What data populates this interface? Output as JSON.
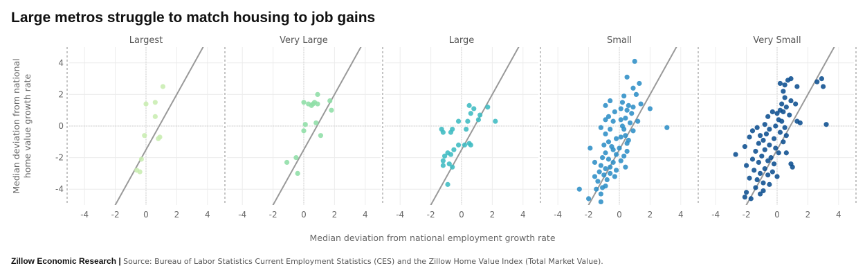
{
  "title": "Large metros struggle to match housing to job gains",
  "footer": {
    "org": "Zillow Economic Research |",
    "source": "Source: Bureau of Labor Statistics Current Employment Statistics (CES) and the Zillow Home Value Index (Total Market Value)."
  },
  "chart_data": {
    "type": "scatter",
    "xlabel": "Median deviation from national employment growth rate",
    "ylabel": [
      "Median deviation from national",
      "home value growth rate"
    ],
    "xlim": [
      -5,
      5
    ],
    "ylim": [
      -5,
      5
    ],
    "xticks": [
      -4,
      -2,
      0,
      2,
      4
    ],
    "yticks": [
      -4,
      -2,
      0,
      2,
      4
    ],
    "grid": true,
    "reference_line": {
      "slope": 1.75,
      "intercept": -1.5,
      "color": "#999999"
    },
    "facets": [
      {
        "name": "Largest",
        "color": "#c8edb0",
        "points": [
          [
            1.1,
            2.5
          ],
          [
            0.6,
            1.5
          ],
          [
            0.0,
            1.4
          ],
          [
            0.6,
            0.6
          ],
          [
            -0.1,
            -0.6
          ],
          [
            0.9,
            -0.7
          ],
          [
            0.8,
            -0.8
          ],
          [
            -0.3,
            -2.1
          ],
          [
            -0.6,
            -2.8
          ],
          [
            -0.4,
            -2.9
          ]
        ]
      },
      {
        "name": "Very Large",
        "color": "#8edea6",
        "points": [
          [
            0.9,
            2.0
          ],
          [
            0.7,
            1.5
          ],
          [
            0.6,
            1.4
          ],
          [
            0.9,
            1.4
          ],
          [
            0.0,
            1.5
          ],
          [
            0.3,
            1.4
          ],
          [
            0.5,
            1.3
          ],
          [
            1.7,
            1.6
          ],
          [
            1.8,
            1.0
          ],
          [
            0.8,
            0.2
          ],
          [
            0.1,
            0.1
          ],
          [
            0.0,
            -0.3
          ],
          [
            1.1,
            -0.6
          ],
          [
            -0.5,
            -2.0
          ],
          [
            -1.1,
            -2.3
          ],
          [
            -0.4,
            -3.0
          ]
        ]
      },
      {
        "name": "Large",
        "color": "#3dbbc1",
        "points": [
          [
            0.5,
            1.3
          ],
          [
            1.7,
            1.2
          ],
          [
            0.8,
            1.1
          ],
          [
            0.6,
            0.8
          ],
          [
            1.2,
            0.7
          ],
          [
            1.1,
            0.4
          ],
          [
            -0.2,
            0.3
          ],
          [
            0.4,
            0.3
          ],
          [
            2.2,
            0.3
          ],
          [
            0.3,
            -0.2
          ],
          [
            -1.3,
            -0.2
          ],
          [
            -0.6,
            -0.2
          ],
          [
            -1.2,
            -0.4
          ],
          [
            -0.7,
            -0.4
          ],
          [
            0.5,
            -1.1
          ],
          [
            0.6,
            -1.2
          ],
          [
            0.2,
            -1.2
          ],
          [
            -0.2,
            -1.2
          ],
          [
            -0.5,
            -1.5
          ],
          [
            -0.9,
            -1.7
          ],
          [
            -0.7,
            -1.8
          ],
          [
            -1.1,
            -1.9
          ],
          [
            -1.2,
            -2.2
          ],
          [
            -0.8,
            -2.4
          ],
          [
            -0.6,
            -2.6
          ],
          [
            -1.2,
            -2.5
          ],
          [
            -0.9,
            -3.7
          ]
        ]
      },
      {
        "name": "Small",
        "color": "#2d8ec6",
        "points": [
          [
            1.0,
            4.1
          ],
          [
            0.5,
            3.1
          ],
          [
            1.3,
            2.7
          ],
          [
            0.9,
            2.4
          ],
          [
            1.1,
            2.0
          ],
          [
            0.3,
            1.9
          ],
          [
            -0.6,
            1.6
          ],
          [
            0.2,
            1.5
          ],
          [
            0.6,
            1.3
          ],
          [
            0.9,
            1.2
          ],
          [
            1.4,
            1.4
          ],
          [
            2.0,
            1.1
          ],
          [
            -0.9,
            1.3
          ],
          [
            0.1,
            1.1
          ],
          [
            0.5,
            1.0
          ],
          [
            -0.3,
            0.9
          ],
          [
            0.8,
            0.8
          ],
          [
            -0.7,
            0.6
          ],
          [
            0.4,
            0.5
          ],
          [
            0.1,
            0.4
          ],
          [
            -0.9,
            0.4
          ],
          [
            -0.4,
            0.3
          ],
          [
            1.2,
            0.3
          ],
          [
            0.7,
            0.2
          ],
          [
            0.2,
            0.0
          ],
          [
            -1.2,
            -0.1
          ],
          [
            -0.6,
            -0.2
          ],
          [
            0.3,
            -0.2
          ],
          [
            0.9,
            -0.3
          ],
          [
            3.1,
            -0.1
          ],
          [
            -0.9,
            -0.5
          ],
          [
            0.4,
            -0.6
          ],
          [
            0.1,
            -0.7
          ],
          [
            -0.2,
            -0.8
          ],
          [
            0.6,
            -0.9
          ],
          [
            -0.7,
            -1.0
          ],
          [
            0.5,
            -1.1
          ],
          [
            -1.0,
            -1.2
          ],
          [
            -0.5,
            -1.3
          ],
          [
            0.0,
            -1.4
          ],
          [
            -1.9,
            -1.4
          ],
          [
            -0.4,
            -1.5
          ],
          [
            0.5,
            -1.6
          ],
          [
            -0.9,
            -1.7
          ],
          [
            -0.2,
            -1.8
          ],
          [
            0.3,
            -1.9
          ],
          [
            -1.1,
            -2.0
          ],
          [
            -0.7,
            -2.1
          ],
          [
            0.1,
            -2.2
          ],
          [
            -0.4,
            -2.3
          ],
          [
            -1.6,
            -2.3
          ],
          [
            -1.2,
            -2.5
          ],
          [
            -0.6,
            -2.6
          ],
          [
            0.4,
            -2.6
          ],
          [
            -0.9,
            -2.7
          ],
          [
            -0.2,
            -2.8
          ],
          [
            -1.3,
            -2.9
          ],
          [
            -0.6,
            -3.0
          ],
          [
            -1.0,
            -3.1
          ],
          [
            -0.3,
            -3.2
          ],
          [
            -1.6,
            -3.2
          ],
          [
            -0.8,
            -3.4
          ],
          [
            -1.4,
            -3.5
          ],
          [
            -0.9,
            -3.8
          ],
          [
            -1.1,
            -3.9
          ],
          [
            -2.6,
            -4.0
          ],
          [
            -1.5,
            -4.0
          ],
          [
            -1.2,
            -4.3
          ],
          [
            -2.0,
            -4.6
          ],
          [
            -1.2,
            -4.8
          ]
        ]
      },
      {
        "name": "Very Small",
        "color": "#0d4f8f",
        "points": [
          [
            0.7,
            2.9
          ],
          [
            0.9,
            3.0
          ],
          [
            0.2,
            2.7
          ],
          [
            0.5,
            2.6
          ],
          [
            1.3,
            2.5
          ],
          [
            2.9,
            3.0
          ],
          [
            2.6,
            2.8
          ],
          [
            3.0,
            2.5
          ],
          [
            0.4,
            2.2
          ],
          [
            0.5,
            1.8
          ],
          [
            0.9,
            1.6
          ],
          [
            1.2,
            1.4
          ],
          [
            0.3,
            1.4
          ],
          [
            0.6,
            1.2
          ],
          [
            0.2,
            1.0
          ],
          [
            0.4,
            0.9
          ],
          [
            -0.3,
            0.9
          ],
          [
            0.0,
            0.8
          ],
          [
            0.8,
            0.7
          ],
          [
            -0.6,
            0.6
          ],
          [
            0.1,
            0.4
          ],
          [
            0.3,
            0.3
          ],
          [
            1.3,
            0.3
          ],
          [
            1.5,
            0.2
          ],
          [
            3.2,
            0.1
          ],
          [
            -0.8,
            0.1
          ],
          [
            -0.1,
            0.0
          ],
          [
            0.5,
            -0.1
          ],
          [
            -1.3,
            -0.1
          ],
          [
            -0.5,
            -0.2
          ],
          [
            -1.6,
            -0.3
          ],
          [
            0.2,
            -0.4
          ],
          [
            -0.7,
            -0.5
          ],
          [
            0.6,
            -0.6
          ],
          [
            -1.1,
            -0.6
          ],
          [
            -1.8,
            -0.7
          ],
          [
            -0.2,
            -0.8
          ],
          [
            -0.9,
            -0.9
          ],
          [
            0.4,
            -1.0
          ],
          [
            -1.2,
            -1.1
          ],
          [
            -0.5,
            -1.2
          ],
          [
            -2.1,
            -1.3
          ],
          [
            -0.1,
            -1.4
          ],
          [
            -0.8,
            -1.5
          ],
          [
            -1.4,
            -1.6
          ],
          [
            0.1,
            -1.7
          ],
          [
            0.6,
            -1.7
          ],
          [
            -2.7,
            -1.8
          ],
          [
            -1.0,
            -1.9
          ],
          [
            -0.4,
            -2.0
          ],
          [
            -1.6,
            -2.1
          ],
          [
            -0.6,
            -2.2
          ],
          [
            -1.2,
            -2.3
          ],
          [
            -0.2,
            -2.4
          ],
          [
            -2.0,
            -2.5
          ],
          [
            0.9,
            -2.4
          ],
          [
            1.0,
            -2.6
          ],
          [
            -0.8,
            -2.7
          ],
          [
            -1.5,
            -2.8
          ],
          [
            -0.3,
            -2.9
          ],
          [
            -1.1,
            -3.0
          ],
          [
            -0.6,
            -3.1
          ],
          [
            0.0,
            -3.2
          ],
          [
            -1.8,
            -3.3
          ],
          [
            -1.3,
            -3.4
          ],
          [
            -0.9,
            -3.6
          ],
          [
            -0.5,
            -3.7
          ],
          [
            -1.4,
            -3.9
          ],
          [
            -0.9,
            -4.1
          ],
          [
            -2.0,
            -4.2
          ],
          [
            -1.1,
            -4.3
          ],
          [
            -2.1,
            -4.5
          ],
          [
            -1.7,
            -4.6
          ]
        ]
      }
    ]
  }
}
